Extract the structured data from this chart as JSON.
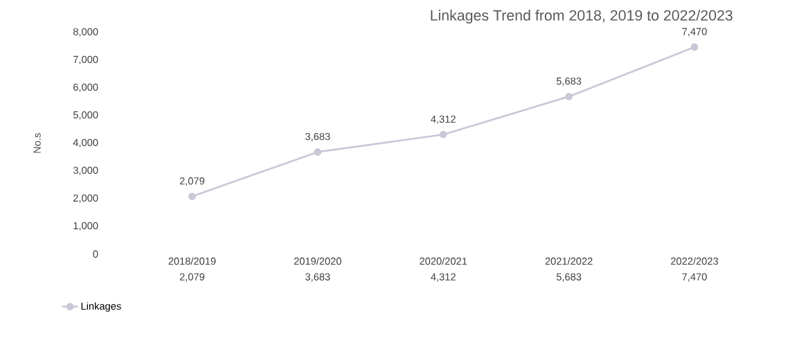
{
  "chart_data": {
    "type": "line",
    "title": "Linkages Trend from 2018, 2019 to 2022/2023",
    "ylabel": "No.s",
    "categories": [
      "2018/2019",
      "2019/2020",
      "2020/2021",
      "2021/2022",
      "2022/2023"
    ],
    "series": [
      {
        "name": "Linkages",
        "color": "#c8c8d8",
        "values": [
          2079,
          3683,
          4312,
          5683,
          7470
        ],
        "value_labels": [
          "2,079",
          "3,683",
          "4,312",
          "5,683",
          "7,470"
        ]
      }
    ],
    "ylim": [
      0,
      8000
    ],
    "yticks": [
      {
        "value": 0,
        "label": "0"
      },
      {
        "value": 1000,
        "label": "1,000"
      },
      {
        "value": 2000,
        "label": "2,000"
      },
      {
        "value": 3000,
        "label": "3,000"
      },
      {
        "value": 4000,
        "label": "4,000"
      },
      {
        "value": 5000,
        "label": "5,000"
      },
      {
        "value": 6000,
        "label": "6,000"
      },
      {
        "value": 7000,
        "label": "7,000"
      },
      {
        "value": 8000,
        "label": "8,000"
      }
    ],
    "legend": "bottom",
    "marker": "circle",
    "line_style": "solid",
    "grid": false
  }
}
